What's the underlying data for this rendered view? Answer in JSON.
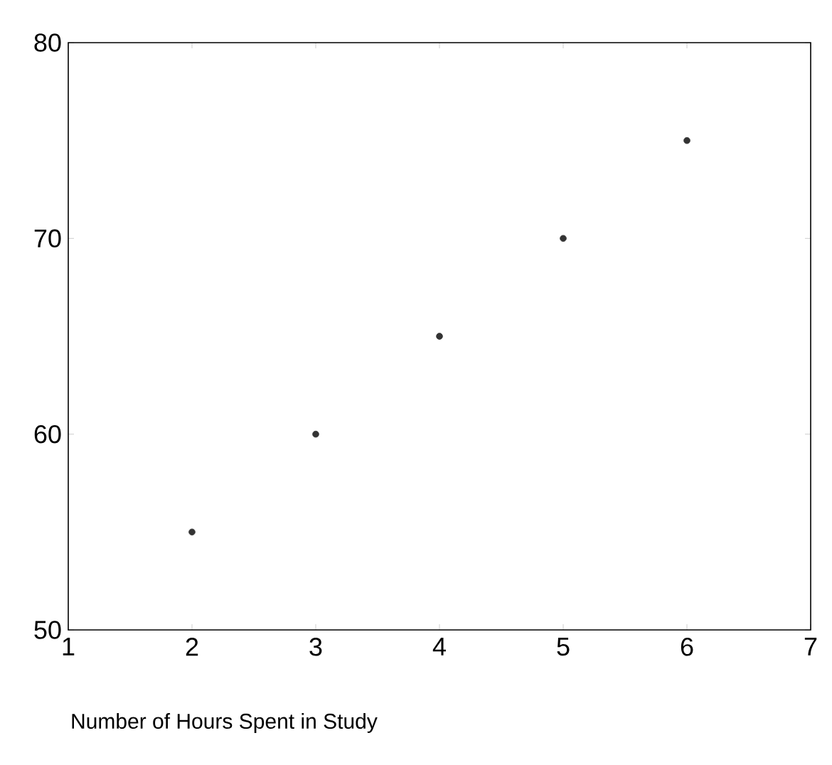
{
  "chart_data": {
    "type": "scatter",
    "xlabel": "Number of Hours Spent in Study",
    "x": [
      2,
      3,
      4,
      5,
      6
    ],
    "values": [
      55,
      60,
      65,
      70,
      75
    ],
    "color": "#333333",
    "xlim": [
      1,
      7
    ],
    "ylim": [
      50,
      80
    ],
    "xticks": [
      1,
      2,
      3,
      4,
      5,
      6,
      7
    ],
    "yticks": [
      50,
      60,
      70,
      80
    ]
  }
}
